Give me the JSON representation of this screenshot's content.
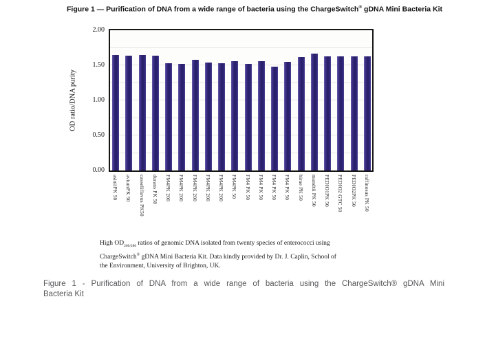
{
  "figure": {
    "title": {
      "pre": "Figure 1 — Purification of DNA from a wide range of bacteria using the ChargeSwitch",
      "sup": "®",
      "post": " gDNA Mini Bacteria Kit"
    },
    "caption": {
      "l1_pre": "High OD",
      "l1_sub": "260/280",
      "l1_post": " ratios of genomic DNA isolated from twenty species of enterococci using",
      "l2_pre": "ChargeSwitch",
      "l2_sup": "®",
      "l2_post": " gDNA Mini Bacteria Kit. Data kindly provided by Dr. J. Caplin, School of",
      "l3": "the Environment, University of Brighton, UK."
    }
  },
  "document_caption": {
    "line1": "Figure 1 - Purification of DNA from a wide range of bacteria using the ChargeSwitch® gDNA Mini",
    "line2": "Bacteria Kit"
  },
  "chart_data": {
    "type": "bar",
    "title": "",
    "xlabel": "",
    "ylabel": "OD ratio/DNA purity",
    "ylim": [
      0.0,
      2.0
    ],
    "yticks": [
      0.0,
      0.5,
      1.0,
      1.5,
      2.0
    ],
    "gridline_step": 0.25,
    "grid": true,
    "legend": false,
    "bar_color": "#33297a",
    "categories": [
      "asiniiPK 50",
      "aviumPK 50",
      "casseliflavus PK50",
      "durans PK 50",
      "FM4PK 200",
      "FM4PK 200",
      "FM4PK 200",
      "FM4PK 200",
      "FM4PK 200",
      "FM4PK 50",
      "FM4 PK 50",
      "FM4 PK 50",
      "FM4 PK 50",
      "FM4 PK 50",
      "hirae PK 50",
      "mundtii PK 50",
      "PEDIO1PK 50",
      "PEDIO2 GTC 50",
      "PEDIO2PK 50",
      "raffinosus PK 50"
    ],
    "values": [
      1.65,
      1.64,
      1.65,
      1.64,
      1.53,
      1.52,
      1.58,
      1.54,
      1.53,
      1.56,
      1.52,
      1.56,
      1.48,
      1.55,
      1.62,
      1.67,
      1.63,
      1.63,
      1.63,
      1.63
    ]
  },
  "colors": {
    "bar": "#33297a",
    "bar_highlight": "#675cab",
    "bar_shadow": "#281f68",
    "frame": "#161616",
    "gridline": "#e8e6e2",
    "doc_caption_text": "#57575a"
  }
}
